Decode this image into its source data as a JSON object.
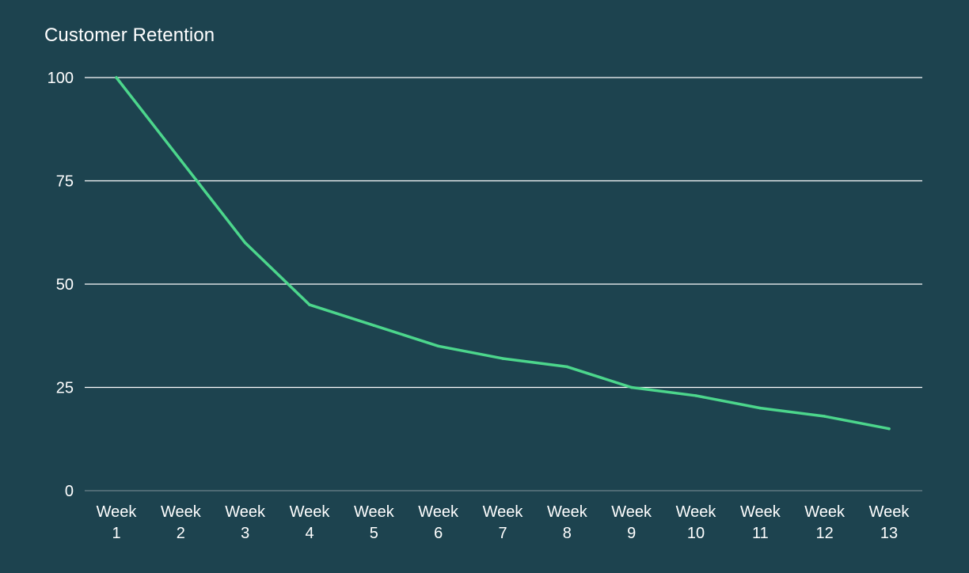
{
  "chart_data": {
    "type": "line",
    "title": "Customer Retention",
    "xlabel": "",
    "ylabel": "",
    "categories": [
      [
        "Week",
        "1"
      ],
      [
        "Week",
        "2"
      ],
      [
        "Week",
        "3"
      ],
      [
        "Week",
        "4"
      ],
      [
        "Week",
        "5"
      ],
      [
        "Week",
        "6"
      ],
      [
        "Week",
        "7"
      ],
      [
        "Week",
        "8"
      ],
      [
        "Week",
        "9"
      ],
      [
        "Week",
        "10"
      ],
      [
        "Week",
        "11"
      ],
      [
        "Week",
        "12"
      ],
      [
        "Week",
        "13"
      ]
    ],
    "series": [
      {
        "values": [
          100,
          80,
          60,
          45,
          40,
          35,
          32,
          30,
          25,
          23,
          20,
          18,
          15
        ],
        "color": "#4cd68c"
      }
    ],
    "ylim": [
      0,
      100
    ],
    "yticks": [
      "0",
      "25",
      "50",
      "75",
      "100"
    ],
    "grid": true,
    "legend": "none",
    "colors": {
      "background": "#1d434f",
      "text": "#ffffff",
      "gridline": "#ffffff",
      "baseline": "#5f7880"
    }
  }
}
